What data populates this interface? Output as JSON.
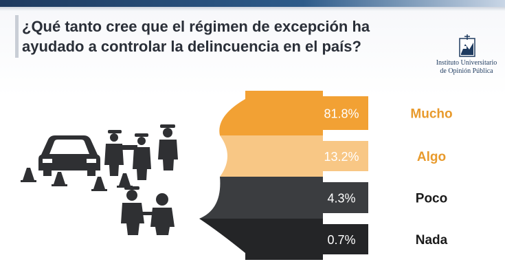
{
  "slide": {
    "title_line1": "¿Qué tanto cree que el régimen de excepción ha",
    "title_line2": "ayudado a controlar la delincuencia en el país?"
  },
  "logo": {
    "icon": "institute-logo-icon",
    "line1": "Instituto Universitario",
    "line2": "de Opinión Pública"
  },
  "illustration": {
    "icons": [
      "police-checkpoint-car-icon",
      "police-officer-icon",
      "traffic-cone-icon",
      "arrest-icon"
    ]
  },
  "colors": {
    "mucho": "#f2a134",
    "algo": "#f8c785",
    "poco": "#3b3d40",
    "nada": "#242527",
    "pct_on_light": "#ffffff",
    "pct_on_dark": "#ffffff",
    "mucho_label": "#e89a2c",
    "algo_label": "#e89a2c",
    "poco_label": "#1a1a1a",
    "nada_label": "#1a1a1a",
    "icons": "#2f3033"
  },
  "chart_data": {
    "type": "bar",
    "orientation": "horizontal-stacked-rows",
    "categories": [
      "Mucho",
      "Algo",
      "Poco",
      "Nada"
    ],
    "values": [
      81.8,
      13.2,
      4.3,
      0.7
    ],
    "value_labels": [
      "81.8%",
      "13.2%",
      "4.3%",
      "0.7%"
    ],
    "unit": "%"
  }
}
